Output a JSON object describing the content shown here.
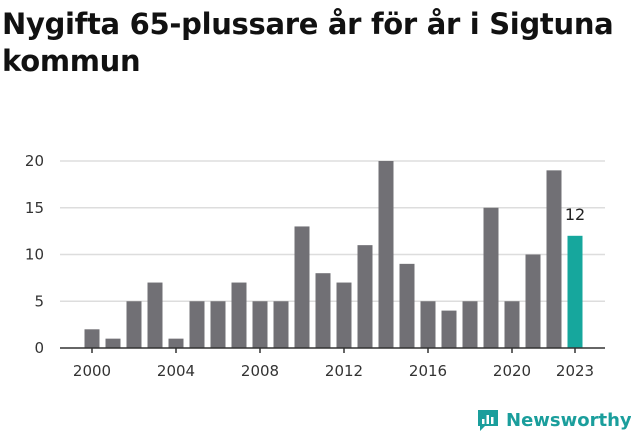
{
  "title": "Nygifta 65-plussare år för år i Sigtuna kommun",
  "brand": {
    "name": "Newsworthy",
    "icon": "newsworthy-logo-icon",
    "color": "#1a9e9c"
  },
  "colors": {
    "bar": "#717075",
    "highlight": "#16a79d",
    "grid": "#dddddd",
    "axis": "#333333"
  },
  "chart_data": {
    "type": "bar",
    "title": "Nygifta 65-plussare år för år i Sigtuna kommun",
    "xlabel": "",
    "ylabel": "",
    "categories": [
      2000,
      2001,
      2002,
      2003,
      2004,
      2005,
      2006,
      2007,
      2008,
      2009,
      2010,
      2011,
      2012,
      2013,
      2014,
      2015,
      2016,
      2017,
      2018,
      2019,
      2020,
      2021,
      2022,
      2023
    ],
    "values": [
      2,
      1,
      5,
      7,
      1,
      5,
      5,
      7,
      5,
      5,
      13,
      8,
      7,
      11,
      20,
      9,
      5,
      4,
      5,
      15,
      5,
      10,
      19,
      12
    ],
    "highlight_category": 2023,
    "data_labels": [
      {
        "category": 2023,
        "text": "12"
      }
    ],
    "x_ticks": [
      "2000",
      "2004",
      "2008",
      "2012",
      "2016",
      "2020",
      "2023"
    ],
    "y_ticks": [
      "0",
      "5",
      "10",
      "15",
      "20"
    ],
    "ylim": [
      0,
      20
    ],
    "grid": true
  }
}
